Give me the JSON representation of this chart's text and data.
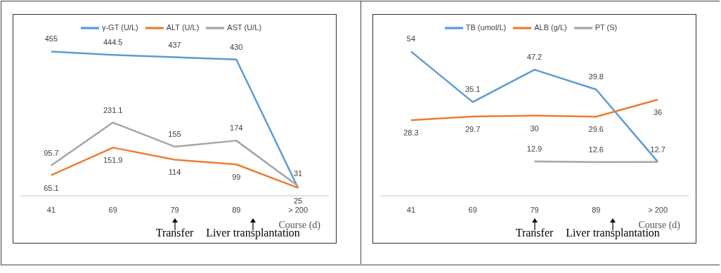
{
  "chart_data": [
    {
      "type": "line",
      "categories": [
        "41",
        "69",
        "79",
        "89",
        "> 200"
      ],
      "xlabel": "Course (d)",
      "legend": "top",
      "marker": "none",
      "line_style": "solid",
      "grid": false,
      "tick_labels": "x",
      "data_labels": true,
      "series": [
        {
          "name": "γ-GT (U/L)",
          "color": "#5b9bd5",
          "values": [
            455,
            444.5,
            437,
            430,
            25
          ],
          "value_labels": [
            "455",
            "444.5",
            "437",
            "430",
            null
          ]
        },
        {
          "name": "ALT (U/L)",
          "color": "#ed7d31",
          "values": [
            65.1,
            151.9,
            114,
            99,
            25
          ]
        },
        {
          "name": "AST (U/L)",
          "color": "#a5a5a5",
          "values": [
            95.7,
            231.1,
            155,
            174,
            31
          ]
        }
      ],
      "annotations": [
        "Transfer",
        "Liver transplantation"
      ]
    },
    {
      "type": "line",
      "categories": [
        "41",
        "69",
        "79",
        "89",
        "> 200"
      ],
      "xlabel": "Course (d)",
      "legend": "top",
      "marker": "none",
      "line_style": "solid",
      "grid": false,
      "tick_labels": "x",
      "data_labels": true,
      "series": [
        {
          "name": "TB (umol/L)",
          "color": "#5b9bd5",
          "values": [
            54,
            35.1,
            47.2,
            39.8,
            12.7
          ],
          "value_labels": [
            "54",
            "35.1",
            "47.2",
            "39.8",
            null
          ]
        },
        {
          "name": "ALB (g/L)",
          "color": "#ed7d31",
          "values": [
            28.3,
            29.7,
            30,
            29.6,
            36
          ]
        },
        {
          "name": "PT (S)",
          "color": "#a5a5a5",
          "values": [
            null,
            null,
            12.9,
            12.6,
            12.7
          ]
        }
      ],
      "annotations": [
        "Transfer",
        "Liver transplantation"
      ]
    }
  ]
}
